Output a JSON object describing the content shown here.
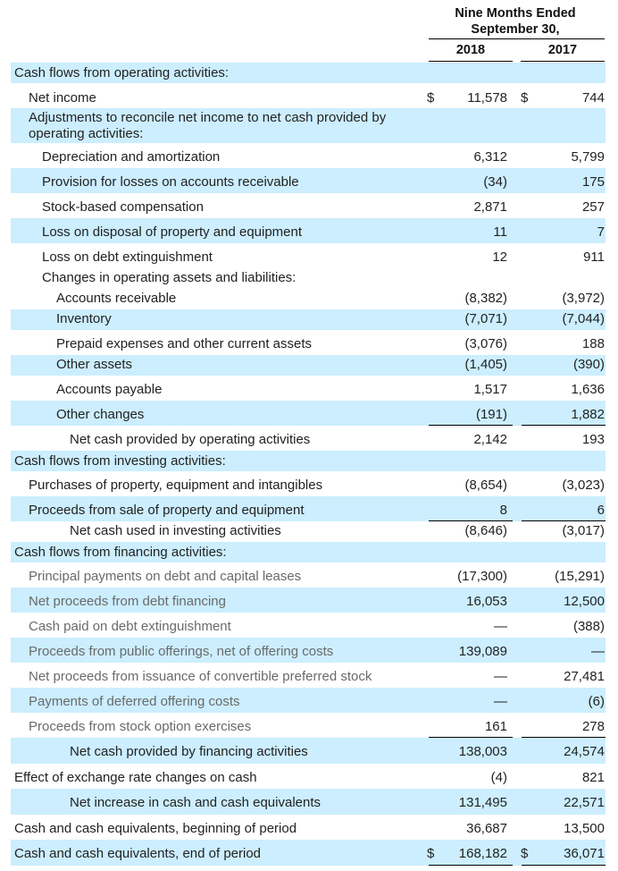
{
  "header": {
    "title_line1": "Nine Months Ended",
    "title_line2": "September 30,",
    "col_2018": "2018",
    "col_2017": "2017"
  },
  "rows": [
    {
      "label": "Cash flows from operating activities:",
      "v2018": "",
      "v2017": ""
    },
    {
      "label": "Net income",
      "v2018": "11,578",
      "v2017": "744",
      "cur2018": "$",
      "cur2017": "$"
    },
    {
      "label": "Adjustments to reconcile net income to net cash provided by operating activities:",
      "v2018": "",
      "v2017": ""
    },
    {
      "label": "Depreciation and amortization",
      "v2018": "6,312",
      "v2017": "5,799"
    },
    {
      "label": "Provision for losses on accounts receivable",
      "v2018": "(34)",
      "v2017": "175"
    },
    {
      "label": "Stock-based compensation",
      "v2018": "2,871",
      "v2017": "257"
    },
    {
      "label": "Loss on disposal of property and equipment",
      "v2018": "11",
      "v2017": "7"
    },
    {
      "label": "Loss on debt extinguishment",
      "v2018": "12",
      "v2017": "911"
    },
    {
      "label": "Changes in operating assets and liabilities:",
      "v2018": "",
      "v2017": ""
    },
    {
      "label": "Accounts receivable",
      "v2018": "(8,382)",
      "v2017": "(3,972)"
    },
    {
      "label": "Inventory",
      "v2018": "(7,071)",
      "v2017": "(7,044)"
    },
    {
      "label": "Prepaid expenses and other current assets",
      "v2018": "(3,076)",
      "v2017": "188"
    },
    {
      "label": "Other assets",
      "v2018": "(1,405)",
      "v2017": "(390)"
    },
    {
      "label": "Accounts payable",
      "v2018": "1,517",
      "v2017": "1,636"
    },
    {
      "label": "Other changes",
      "v2018": "(191)",
      "v2017": "1,882"
    },
    {
      "label": "Net cash provided by operating activities",
      "v2018": "2,142",
      "v2017": "193"
    },
    {
      "label": "Cash flows from investing activities:",
      "v2018": "",
      "v2017": ""
    },
    {
      "label": "Purchases of property, equipment and intangibles",
      "v2018": "(8,654)",
      "v2017": "(3,023)"
    },
    {
      "label": "Proceeds from sale of property and equipment",
      "v2018": "8",
      "v2017": "6"
    },
    {
      "label": "Net cash used in investing activities",
      "v2018": "(8,646)",
      "v2017": "(3,017)"
    },
    {
      "label": "Cash flows from financing activities:",
      "v2018": "",
      "v2017": ""
    },
    {
      "label": "Principal payments on debt and capital leases",
      "v2018": "(17,300)",
      "v2017": "(15,291)"
    },
    {
      "label": "Net proceeds from debt financing",
      "v2018": "16,053",
      "v2017": "12,500"
    },
    {
      "label": "Cash paid on debt extinguishment",
      "v2018": "—",
      "v2017": "(388)"
    },
    {
      "label": "Proceeds from public offerings, net of offering costs",
      "v2018": "139,089",
      "v2017": "—"
    },
    {
      "label": "Net proceeds from issuance of convertible preferred stock",
      "v2018": "—",
      "v2017": "27,481"
    },
    {
      "label": "Payments of deferred offering costs",
      "v2018": "—",
      "v2017": "(6)"
    },
    {
      "label": "Proceeds from stock option exercises",
      "v2018": "161",
      "v2017": "278"
    },
    {
      "label": "Net cash provided by financing activities",
      "v2018": "138,003",
      "v2017": "24,574"
    },
    {
      "label": "Effect of exchange rate changes on cash",
      "v2018": "(4)",
      "v2017": "821"
    },
    {
      "label": "Net increase in cash and cash equivalents",
      "v2018": "131,495",
      "v2017": "22,571"
    },
    {
      "label": "Cash and cash equivalents, beginning of period",
      "v2018": "36,687",
      "v2017": "13,500"
    },
    {
      "label": "Cash and cash equivalents, end of period",
      "v2018": "168,182",
      "v2017": "36,071",
      "cur2018": "$",
      "cur2017": "$"
    }
  ]
}
